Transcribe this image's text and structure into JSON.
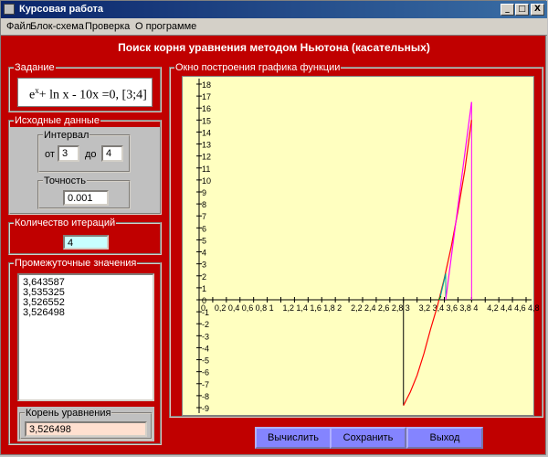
{
  "window": {
    "title": "Курсовая работа",
    "min": "_",
    "max": "□",
    "close": "X"
  },
  "menu": {
    "items": [
      "Файл",
      "Блок-схема",
      "Проверка",
      "О программе"
    ]
  },
  "heading": "Поиск корня уравнения методом Ньютона (касательных)",
  "task": {
    "caption": "Задание",
    "equation_base": "e",
    "equation_exp": "x",
    "equation_rest": "+ ln x - 10x =0, [3;4]"
  },
  "input": {
    "caption": "Исходные данные",
    "interval_caption": "Интервал",
    "from_label": "от",
    "from_value": "3",
    "to_label": "до",
    "to_value": "4",
    "precision_caption": "Точность",
    "precision_value": "0.001"
  },
  "iterations": {
    "caption": "Количество итераций",
    "value": "4"
  },
  "intermediate": {
    "caption": "Промежуточные значения",
    "values": [
      "3,643587",
      "3,535325",
      "3,526552",
      "3,526498"
    ]
  },
  "root": {
    "caption": "Корень уравнения",
    "value": "3,526498"
  },
  "graph": {
    "caption": "Окно построения графика функции"
  },
  "buttons": {
    "compute": "Вычислить",
    "save": "Сохранить",
    "exit": "Выход"
  },
  "chart_data": {
    "type": "line",
    "x_ticks": [
      "0",
      "0,2",
      "0,4",
      "0,6",
      "0,8",
      "1",
      "1,2",
      "1,4",
      "1,6",
      "1,8",
      "2",
      "2,2",
      "2,4",
      "2,6",
      "2,8",
      "3",
      "3,2",
      "3,4",
      "3,6",
      "3,8",
      "4",
      "4,2",
      "4,4",
      "4,6",
      "4,8"
    ],
    "y_ticks": [
      "18",
      "17",
      "16",
      "15",
      "14",
      "13",
      "12",
      "11",
      "10",
      "9",
      "8",
      "7",
      "6",
      "5",
      "4",
      "3",
      "2",
      "1",
      "0",
      "-1",
      "-2",
      "-3",
      "-4",
      "-5",
      "-6",
      "-7",
      "-8",
      "-9"
    ],
    "xlim": [
      0,
      4.8
    ],
    "ylim": [
      -9,
      18
    ],
    "series": [
      {
        "kind": "function",
        "color": "#ff0000",
        "x": [
          3.0,
          3.1,
          3.2,
          3.3,
          3.4,
          3.5,
          3.6,
          3.7,
          3.8,
          3.9,
          4.0
        ],
        "y": [
          -8.82,
          -7.7,
          -6.3,
          -4.5,
          -2.4,
          -0.5,
          1.8,
          4.4,
          7.4,
          10.8,
          15.0
        ]
      },
      {
        "kind": "tangent",
        "color": "#ff00ff",
        "x": [
          3.62,
          4.0
        ],
        "y": [
          0,
          16.5
        ]
      },
      {
        "kind": "tangent",
        "color": "#00a0a0",
        "x": [
          3.53,
          3.62
        ],
        "y": [
          0,
          2.2
        ]
      },
      {
        "kind": "tangent",
        "color": "#008000",
        "x": [
          3.52,
          3.55
        ],
        "y": [
          0,
          0.3
        ]
      }
    ],
    "verticals": [
      {
        "x": 3.0,
        "y": [
          -8.82,
          0
        ],
        "color": "#000000"
      },
      {
        "x": 4.0,
        "y": [
          0,
          16.5
        ],
        "color": "#ff00ff"
      },
      {
        "x": 3.62,
        "y": [
          0,
          2.2
        ],
        "color": "#00a0a0"
      }
    ]
  }
}
